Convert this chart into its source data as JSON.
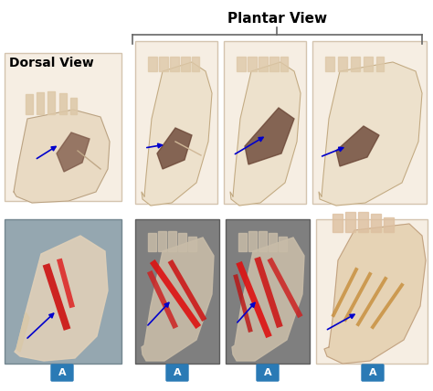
{
  "title_plantar": "Plantar View",
  "title_dorsal": "Dorsal View",
  "bg_color": "#ffffff",
  "label_a_color": "#2a7ab5",
  "label_a_text": "A",
  "title_fontsize": 11,
  "dorsal_fontsize": 10,
  "arrow_color": "#0000cc",
  "bracket_color": "#666666"
}
